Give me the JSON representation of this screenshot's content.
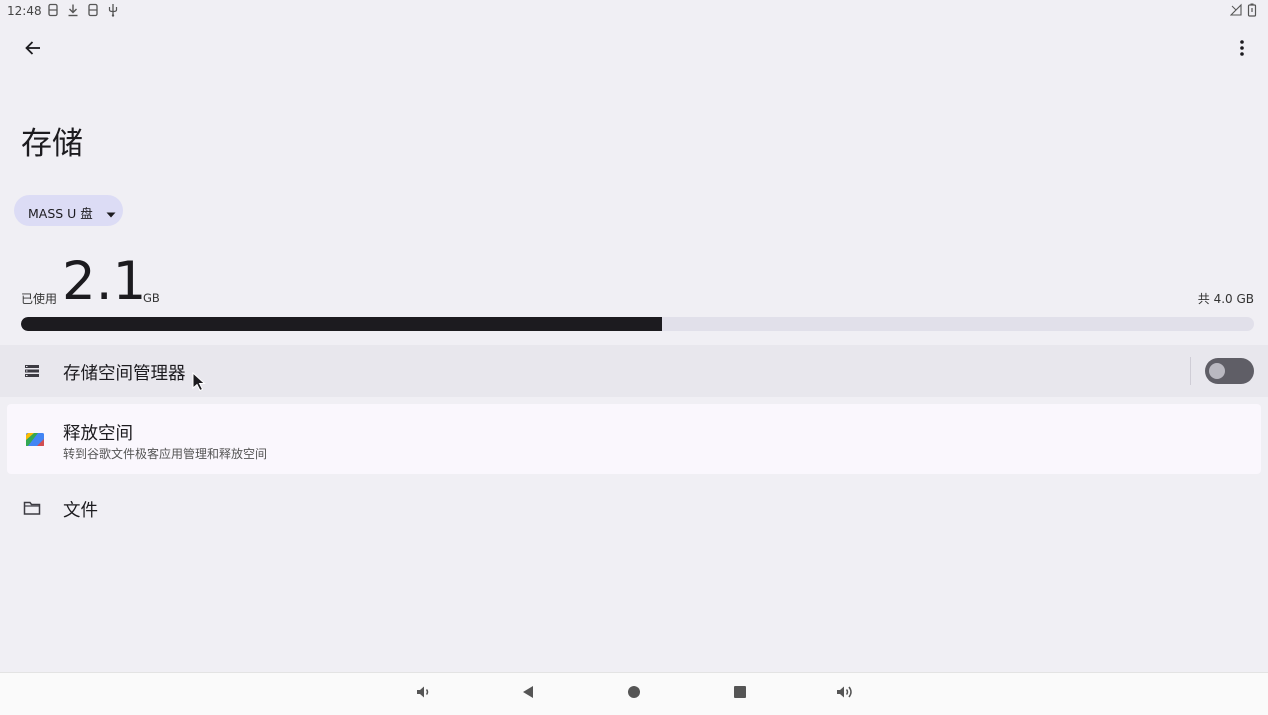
{
  "status_bar": {
    "time": "12:48",
    "left_icons": [
      "sd-card-icon",
      "download-icon",
      "sd-card-icon",
      "usb-icon"
    ],
    "right_icons": [
      "signal-icon",
      "battery-icon"
    ]
  },
  "toolbar": {
    "back_icon": "arrow-back-icon",
    "more_icon": "more-vert-icon"
  },
  "page": {
    "title": "存储"
  },
  "volume_selector": {
    "label": "MASS U 盘",
    "icon": "dropdown-arrow-icon"
  },
  "usage": {
    "used_prefix": "已使用",
    "used_value": "2.1",
    "used_unit": "GB",
    "total_text": "共 4.0 GB",
    "used_fraction": 0.52,
    "bar_fill_color": "#1c1b1f",
    "bar_track_color": "#e1e0ea"
  },
  "storage_manager": {
    "label": "存储空间管理器",
    "icon": "storage-list-icon",
    "toggle_on": false
  },
  "free_space": {
    "title": "释放空间",
    "subtitle": "转到谷歌文件极客应用管理和释放空间",
    "icon": "files-app-icon"
  },
  "files": {
    "label": "文件",
    "icon": "folder-icon"
  },
  "nav_bar": {
    "buttons": [
      "volume-down-icon",
      "back-triangle-icon",
      "home-circle-icon",
      "recents-square-icon",
      "volume-up-icon"
    ]
  },
  "colors": {
    "background": "#f0eff4",
    "chip_background": "#dcdcf5",
    "highlight_row": "#e8e7ed",
    "card_row": "#faf7fd"
  }
}
